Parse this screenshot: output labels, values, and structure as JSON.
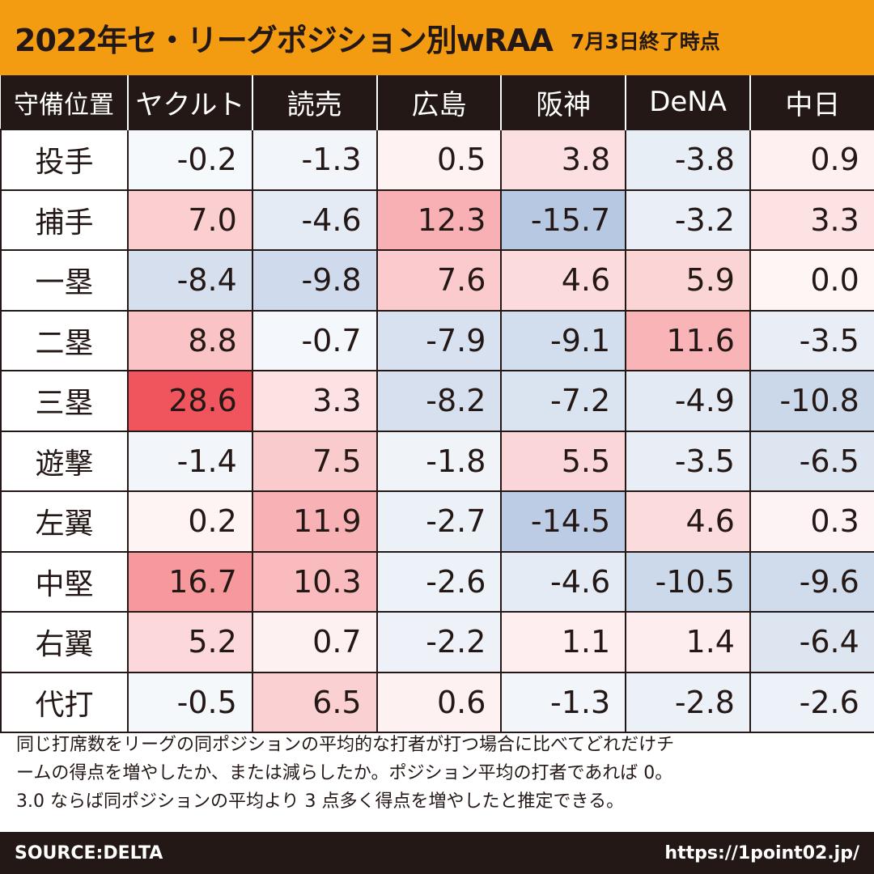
{
  "header": {
    "title": "2022年セ・リーグポジション別wRAA",
    "subtitle": "7月3日終了時点"
  },
  "chart_data": {
    "type": "heatmap",
    "corner_label": "守備位置",
    "columns": [
      "ヤクルト",
      "読売",
      "広島",
      "阪神",
      "DeNA",
      "中日"
    ],
    "rows": [
      {
        "label": "投手",
        "values": [
          "-0.2",
          "-1.3",
          "0.5",
          "3.8",
          "-3.8",
          "0.9"
        ]
      },
      {
        "label": "捕手",
        "values": [
          "7.0",
          "-4.6",
          "12.3",
          "-15.7",
          "-3.2",
          "3.3"
        ]
      },
      {
        "label": "一塁",
        "values": [
          "-8.4",
          "-9.8",
          "7.6",
          "4.6",
          "5.9",
          "0.0"
        ]
      },
      {
        "label": "二塁",
        "values": [
          "8.8",
          "-0.7",
          "-7.9",
          "-9.1",
          "11.6",
          "-3.5"
        ]
      },
      {
        "label": "三塁",
        "values": [
          "28.6",
          "3.3",
          "-8.2",
          "-7.2",
          "-4.9",
          "-10.8"
        ]
      },
      {
        "label": "遊撃",
        "values": [
          "-1.4",
          "7.5",
          "-1.8",
          "5.5",
          "-3.5",
          "-6.5"
        ]
      },
      {
        "label": "左翼",
        "values": [
          "0.2",
          "11.9",
          "-2.7",
          "-14.5",
          "4.6",
          "0.3"
        ]
      },
      {
        "label": "中堅",
        "values": [
          "16.7",
          "10.3",
          "-2.6",
          "-4.6",
          "-10.5",
          "-9.6"
        ]
      },
      {
        "label": "右翼",
        "values": [
          "5.2",
          "0.7",
          "-2.2",
          "1.1",
          "1.4",
          "-6.4"
        ]
      },
      {
        "label": "代打",
        "values": [
          "-0.5",
          "6.5",
          "0.6",
          "-1.3",
          "-2.8",
          "-2.6"
        ]
      }
    ],
    "color_scale": {
      "positive": "#f0525a",
      "negative": "#7f9fcc",
      "neutral": "#ffffff",
      "max_abs": 28.6
    }
  },
  "note": {
    "lines": [
      "同じ打席数をリーグの同ポジションの平均的な打者が打つ場合に比べてどれだけチ",
      "ームの得点を増やしたか、または減らしたか。ポジション平均の打者であれば 0。",
      "3.0 ならば同ポジションの平均より 3 点多く得点を増やしたと推定できる。"
    ]
  },
  "footer": {
    "source": "SOURCE:DELTA",
    "url": "https://1point02.jp/"
  },
  "colors": {
    "title_bar": "#f39c12",
    "header_bg": "#231815",
    "text": "#231815"
  }
}
